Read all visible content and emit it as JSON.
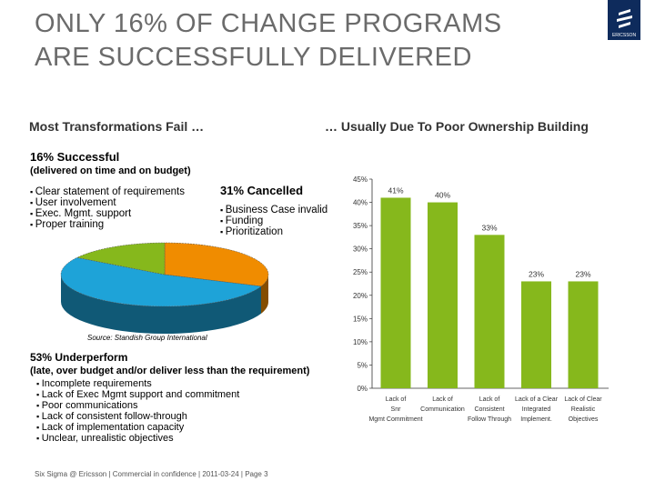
{
  "title_lines": [
    "Only 16% of change programs",
    "are successfully delivered"
  ],
  "logo": {
    "text": "ERICSSON",
    "color": "#0e2b5c"
  },
  "left_header": "Most Transformations Fail …",
  "right_header": "… Usually Due To Poor Ownership Building",
  "successful": {
    "heading": "16% Successful",
    "sub": "(delivered on time and on budget)",
    "items": [
      "Clear statement of requirements",
      "User involvement",
      "Exec. Mgmt. support",
      "Proper training"
    ]
  },
  "cancelled": {
    "heading": "31% Cancelled",
    "items": [
      "Business Case invalid",
      "Funding",
      "Prioritization"
    ]
  },
  "underperform": {
    "heading": "53%  Underperform",
    "sub": "(late, over budget and/or deliver less than the requirement)",
    "items": [
      "Incomplete requirements",
      "Lack of Exec Mgmt support and commitment",
      "Poor communications",
      "Lack of consistent follow-through",
      "Lack of implementation capacity",
      "Unclear, unrealistic objectives"
    ]
  },
  "source": "Source: Standish Group International",
  "footer": "Six Sigma @ Ericsson  |  Commercial in confidence  |  2011-03-24  |  Page 3",
  "chart_data": [
    {
      "type": "pie",
      "style": "3d",
      "slices": [
        {
          "label": "Cancelled",
          "value": 31,
          "color": "#f08c00"
        },
        {
          "label": "Underperform",
          "value": 53,
          "color": "#1ea3d8"
        },
        {
          "label": "Successful",
          "value": 16,
          "color": "#86b81c"
        }
      ]
    },
    {
      "type": "bar",
      "categories": [
        "Lack of Snr Mgmt Commitment",
        "Lack of Communication",
        "Lack of Consistent Follow Through",
        "Lack of a Clear Integrated Implement.",
        "Lack of Clear Realistic Objectives"
      ],
      "values": [
        41,
        40,
        33,
        23,
        23
      ],
      "data_labels": [
        "41%",
        "40%",
        "33%",
        "23%",
        "23%"
      ],
      "yticks": [
        "0%",
        "5%",
        "10%",
        "15%",
        "20%",
        "25%",
        "30%",
        "35%",
        "40%",
        "45%"
      ],
      "ylim": [
        0,
        45
      ],
      "color": "#86b81c",
      "grid": false
    }
  ]
}
